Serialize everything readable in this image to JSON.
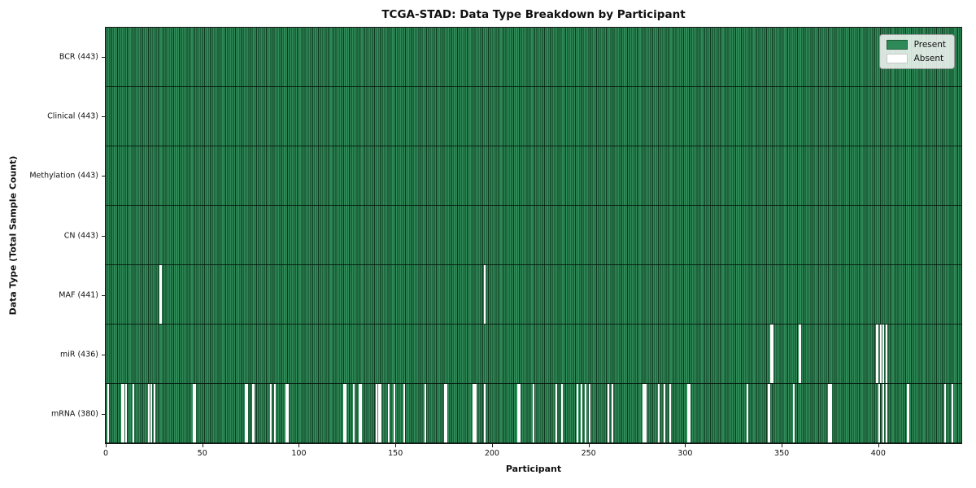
{
  "title": "TCGA-STAD: Data Type Breakdown by Participant",
  "xlabel": "Participant",
  "ylabel": "Data Type (Total Sample Count)",
  "legend": {
    "present_label": "Present",
    "absent_label": "Absent"
  },
  "colors": {
    "present": "#2e8b57",
    "present_edge": "#0a2816",
    "absent": "#ffffff",
    "spine": "#1a1a1a",
    "legend_bg": "rgba(255,255,255,0.82)"
  },
  "chart_data": {
    "type": "heatmap",
    "title": "TCGA-STAD: Data Type Breakdown by Participant",
    "xlabel": "Participant",
    "ylabel": "Data Type (Total Sample Count)",
    "legend_entries": [
      "Present",
      "Absent"
    ],
    "legend_position": "upper right",
    "grid": false,
    "n_participants": 443,
    "x_ticks": [
      0,
      50,
      100,
      150,
      200,
      250,
      300,
      350,
      400
    ],
    "rows": [
      {
        "data_type": "BCR",
        "label": "BCR (443)",
        "present_count": 443,
        "absent_count": 0,
        "absent_participants": []
      },
      {
        "data_type": "Clinical",
        "label": "Clinical (443)",
        "present_count": 443,
        "absent_count": 0,
        "absent_participants": []
      },
      {
        "data_type": "Methylation",
        "label": "Methylation (443)",
        "present_count": 443,
        "absent_count": 0,
        "absent_participants": []
      },
      {
        "data_type": "CN",
        "label": "CN (443)",
        "present_count": 443,
        "absent_count": 0,
        "absent_participants": []
      },
      {
        "data_type": "MAF",
        "label": "MAF (441)",
        "present_count": 441,
        "absent_count": 2,
        "absent_participants": [
          28,
          196
        ]
      },
      {
        "data_type": "miR",
        "label": "miR (436)",
        "present_count": 436,
        "absent_count": 7,
        "absent_participants": [
          344,
          345,
          359,
          399,
          401,
          402,
          404
        ]
      },
      {
        "data_type": "mRNA",
        "label": "mRNA (380)",
        "present_count": 380,
        "absent_count": 63,
        "absent_participants": [
          1,
          8,
          9,
          10,
          14,
          22,
          23,
          25,
          45,
          46,
          72,
          73,
          76,
          85,
          87,
          93,
          94,
          123,
          124,
          128,
          131,
          132,
          140,
          141,
          142,
          146,
          149,
          154,
          165,
          175,
          176,
          190,
          191,
          196,
          213,
          214,
          221,
          233,
          236,
          244,
          246,
          248,
          250,
          260,
          262,
          278,
          279,
          286,
          289,
          292,
          301,
          302,
          332,
          343,
          356,
          374,
          375,
          400,
          402,
          404,
          415,
          434,
          438
        ]
      }
    ]
  }
}
